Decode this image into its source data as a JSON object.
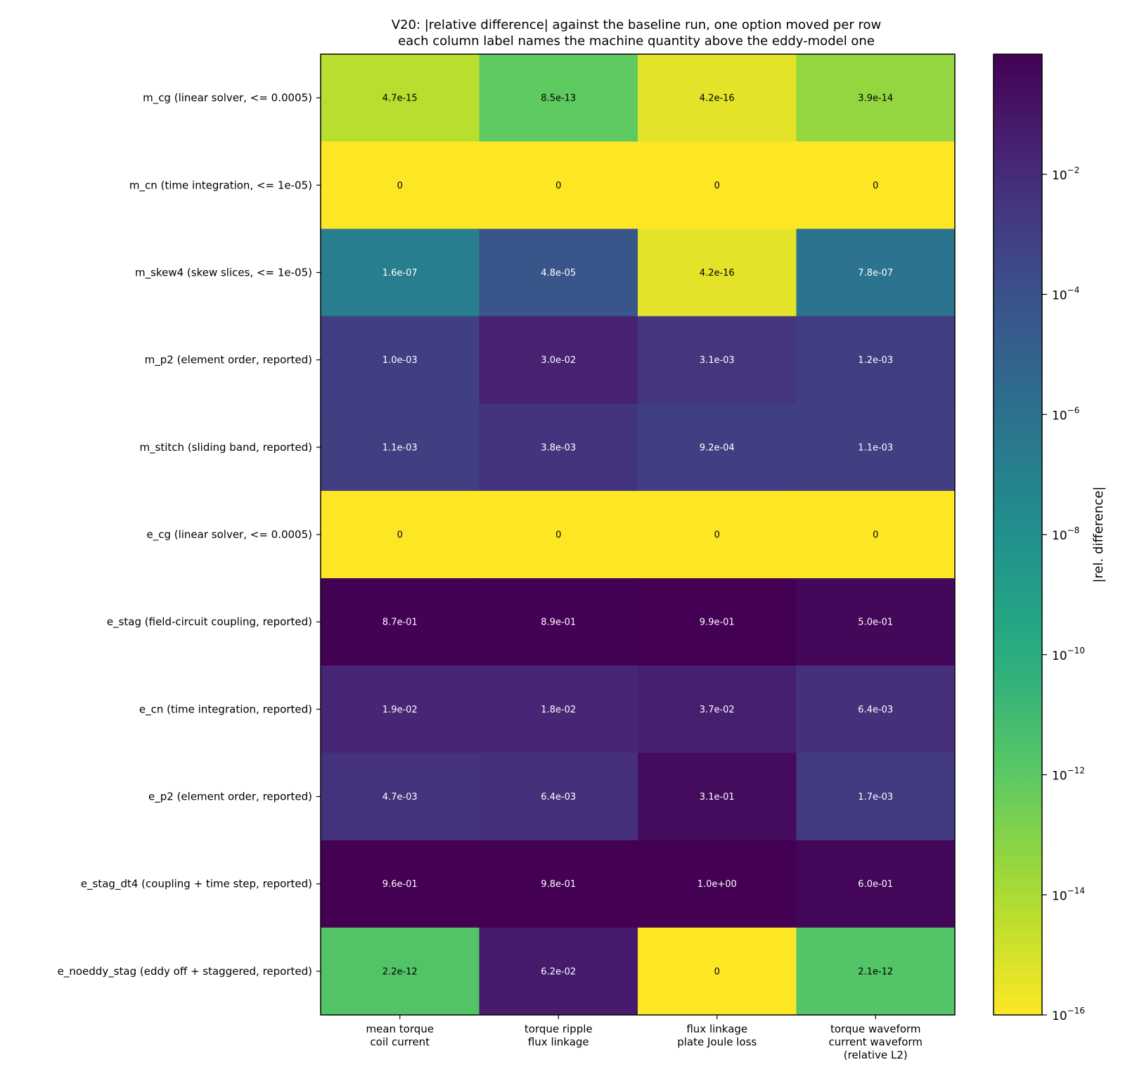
{
  "chart_data": {
    "type": "heatmap",
    "title": "V20: |relative difference| against the baseline run, one option moved per row",
    "subtitle": "each column label names the machine quantity above the eddy-model one",
    "colorbar_label": "|rel. difference|",
    "scale": "log",
    "colormap": "viridis_r",
    "clim": [
      1e-16,
      1
    ],
    "colorbar_ticks": [
      {
        "exp": -2,
        "label": "10",
        "sup": "−2"
      },
      {
        "exp": -4,
        "label": "10",
        "sup": "−4"
      },
      {
        "exp": -6,
        "label": "10",
        "sup": "−6"
      },
      {
        "exp": -8,
        "label": "10",
        "sup": "−8"
      },
      {
        "exp": -10,
        "label": "10",
        "sup": "−10"
      },
      {
        "exp": -12,
        "label": "10",
        "sup": "−12"
      },
      {
        "exp": -14,
        "label": "10",
        "sup": "−14"
      },
      {
        "exp": -16,
        "label": "10",
        "sup": "−16"
      }
    ],
    "columns": [
      [
        "mean torque",
        "coil current"
      ],
      [
        "torque ripple",
        "flux linkage"
      ],
      [
        "flux linkage",
        "plate Joule loss"
      ],
      [
        "torque waveform",
        "current waveform",
        "(relative L2)"
      ]
    ],
    "rows": [
      "m_cg  (linear solver, <= 0.0005)",
      "m_cn  (time integration, <= 1e-05)",
      "m_skew4  (skew slices, <= 1e-05)",
      "m_p2  (element order, reported)",
      "m_stitch  (sliding band, reported)",
      "e_cg  (linear solver, <= 0.0005)",
      "e_stag  (field-circuit coupling, reported)",
      "e_cn  (time integration, reported)",
      "e_p2  (element order, reported)",
      "e_stag_dt4  (coupling + time step, reported)",
      "e_noeddy_stag  (eddy off + staggered, reported)"
    ],
    "values": [
      [
        4.7e-15,
        8.5e-13,
        4.2e-16,
        3.9e-14
      ],
      [
        0,
        0,
        0,
        0
      ],
      [
        1.6e-07,
        4.8e-05,
        4.2e-16,
        7.8e-07
      ],
      [
        0.001,
        0.03,
        0.0031,
        0.0012
      ],
      [
        0.0011,
        0.0038,
        0.00092,
        0.0011
      ],
      [
        0,
        0,
        0,
        0
      ],
      [
        0.87,
        0.89,
        0.99,
        0.5
      ],
      [
        0.019,
        0.018,
        0.037,
        0.0064
      ],
      [
        0.0047,
        0.0064,
        0.31,
        0.0017
      ],
      [
        0.96,
        0.98,
        1.0,
        0.6
      ],
      [
        2.2e-12,
        0.062,
        0,
        2.1e-12
      ]
    ],
    "labels": [
      [
        "4.7e-15",
        "8.5e-13",
        "4.2e-16",
        "3.9e-14"
      ],
      [
        "0",
        "0",
        "0",
        "0"
      ],
      [
        "1.6e-07",
        "4.8e-05",
        "4.2e-16",
        "7.8e-07"
      ],
      [
        "1.0e-03",
        "3.0e-02",
        "3.1e-03",
        "1.2e-03"
      ],
      [
        "1.1e-03",
        "3.8e-03",
        "9.2e-04",
        "1.1e-03"
      ],
      [
        "0",
        "0",
        "0",
        "0"
      ],
      [
        "8.7e-01",
        "8.9e-01",
        "9.9e-01",
        "5.0e-01"
      ],
      [
        "1.9e-02",
        "1.8e-02",
        "3.7e-02",
        "6.4e-03"
      ],
      [
        "4.7e-03",
        "6.4e-03",
        "3.1e-01",
        "1.7e-03"
      ],
      [
        "9.6e-01",
        "9.8e-01",
        "1.0e+00",
        "6.0e-01"
      ],
      [
        "2.2e-12",
        "6.2e-02",
        "0",
        "2.1e-12"
      ]
    ]
  }
}
